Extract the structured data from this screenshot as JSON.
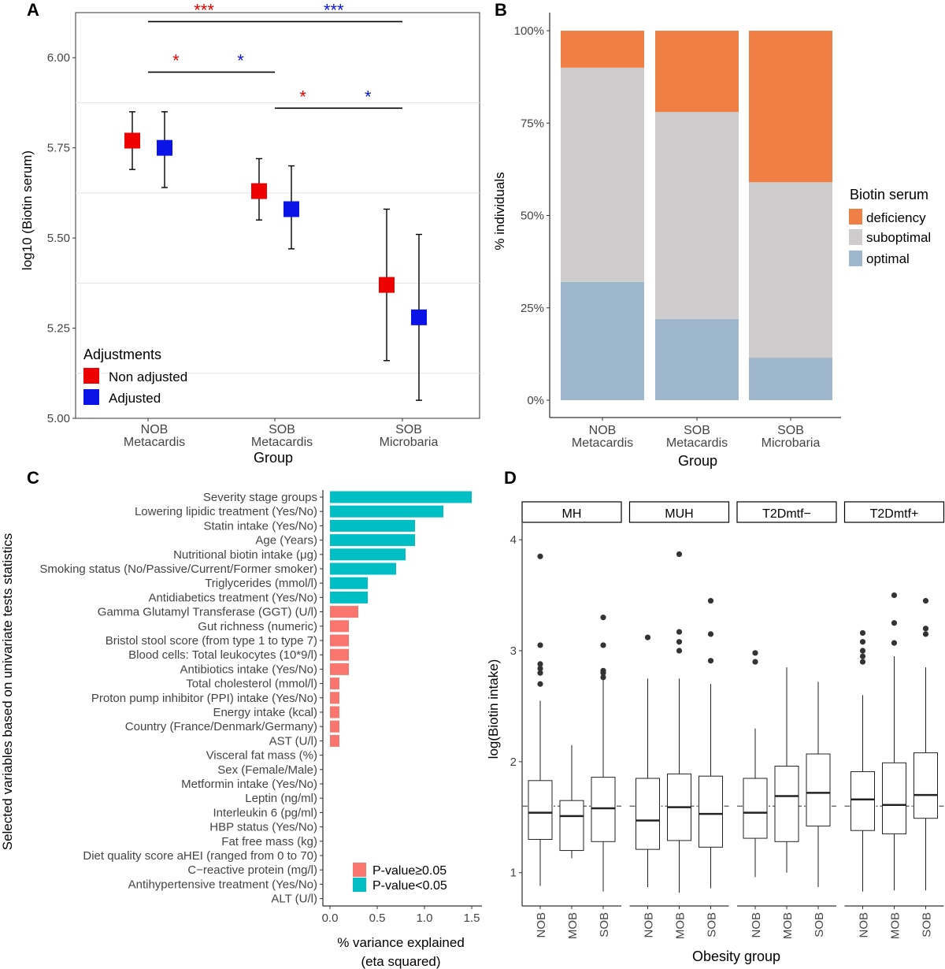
{
  "panels": {
    "A": "A",
    "B": "B",
    "C": "C",
    "D": "D"
  },
  "chart_data": [
    {
      "panel": "A",
      "type": "scatter",
      "xlabel": "Group",
      "ylabel": "log10 (Biotin serum)",
      "ylim": [
        5.0,
        6.125
      ],
      "y_ticks": [
        5.0,
        5.25,
        5.5,
        5.75,
        6.0
      ],
      "y_tick_labels": [
        "5.00",
        "5.25",
        "5.50",
        "5.75",
        "6.00"
      ],
      "categories": [
        [
          "NOB",
          "Metacardis"
        ],
        [
          "SOB",
          "Metacardis"
        ],
        [
          "SOB",
          "Microbaria"
        ]
      ],
      "grid": true,
      "legend": {
        "title": "Adjustments",
        "position": "bottom-left"
      },
      "series": [
        {
          "name": "Non adjusted",
          "color": "#ee0000",
          "values": [
            5.77,
            5.63,
            5.37
          ],
          "lower": [
            5.69,
            5.55,
            5.16
          ],
          "upper": [
            5.85,
            5.72,
            5.58
          ]
        },
        {
          "name": "Adjusted",
          "color": "#0a14e6",
          "values": [
            5.75,
            5.58,
            5.28
          ],
          "lower": [
            5.64,
            5.47,
            5.05
          ],
          "upper": [
            5.85,
            5.7,
            5.51
          ]
        }
      ],
      "annotations": [
        {
          "from": 0,
          "to": 2,
          "level": 6.1,
          "left": "***",
          "right": "***"
        },
        {
          "from": 0,
          "to": 1,
          "level": 5.96,
          "left": "*",
          "right": "*"
        },
        {
          "from": 1,
          "to": 2,
          "level": 5.86,
          "left": "*",
          "right": "*"
        }
      ]
    },
    {
      "panel": "B",
      "type": "bar",
      "stacked": true,
      "xlabel": "Group",
      "ylabel": "% individuals",
      "ylim": [
        0,
        100
      ],
      "y_ticks": [
        0,
        25,
        50,
        75,
        100
      ],
      "y_tick_labels": [
        "0%",
        "25%",
        "50%",
        "75%",
        "100%"
      ],
      "categories": [
        [
          "NOB",
          "Metacardis"
        ],
        [
          "SOB",
          "Metacardis"
        ],
        [
          "SOB",
          "Microbaria"
        ]
      ],
      "legend": {
        "title": "Biotin serum",
        "position": "right"
      },
      "series": [
        {
          "name": "optimal",
          "color": "#9fb7cd",
          "values": [
            32,
            22,
            11.5
          ]
        },
        {
          "name": "suboptimal",
          "color": "#cecccc",
          "values": [
            58,
            56,
            47.5
          ]
        },
        {
          "name": "deficiency",
          "color": "#f07f46",
          "values": [
            10,
            22,
            41
          ]
        }
      ]
    },
    {
      "panel": "C",
      "type": "bar",
      "orientation": "horizontal",
      "xlabel": "% variance explained",
      "xlabel2": "(eta squared)",
      "ylabel": "Selected variables based on univariate tests statistics",
      "xlim": [
        0,
        1.5
      ],
      "x_ticks": [
        0,
        0.5,
        1.0,
        1.5
      ],
      "x_tick_labels": [
        "0.0",
        "0.5",
        "1.0",
        "1.5"
      ],
      "legend": {
        "position": "bottom-right"
      },
      "groups": [
        {
          "name": "P-value≥0.05",
          "color": "#f8766d"
        },
        {
          "name": "P-value<0.05",
          "color": "#00bfc4"
        }
      ],
      "categories": [
        "Severity stage groups",
        "Lowering lipidic treatment (Yes/No)",
        "Statin intake (Yes/No)",
        "Age (Years)",
        "Nutritional biotin intake (μg)",
        "Smoking status (No/Passive/Current/Former smoker)",
        "Triglycerides (mmol/l)",
        "Antidiabetics treatment (Yes/No)",
        "Gamma Glutamyl Transferase (GGT) (U/l)",
        "Gut richness (numeric)",
        "Bristol stool score (from type 1 to type 7)",
        "Blood cells: Total leukocytes (10*9/l)",
        "Antibiotics intake (Yes/No)",
        "Total cholesterol (mmol/l)",
        "Proton pump inhibitor (PPI) intake (Yes/No)",
        "Energy intake (kcal)",
        "Country (France/Denmark/Germany)",
        "AST (U/l)",
        "Visceral fat mass (%)",
        "Sex (Female/Male)",
        "Metformin intake (Yes/No)",
        "Leptin (ng/ml)",
        "Interleukin 6 (pg/ml)",
        "HBP status (Yes/No)",
        "Fat free mass (kg)",
        "Diet quality score aHEI (ranged from 0 to 70)",
        "C−reactive protein (mg/l)",
        "Antihypertensive treatment (Yes/No)",
        "ALT (U/l)"
      ],
      "values": [
        1.5,
        1.2,
        0.9,
        0.9,
        0.8,
        0.7,
        0.4,
        0.4,
        0.3,
        0.2,
        0.2,
        0.2,
        0.2,
        0.1,
        0.1,
        0.1,
        0.1,
        0.1,
        0,
        0,
        0,
        0,
        0,
        0,
        0,
        0,
        0,
        0,
        0
      ],
      "significant": [
        true,
        true,
        true,
        true,
        true,
        true,
        true,
        true,
        false,
        false,
        false,
        false,
        false,
        false,
        false,
        false,
        false,
        false,
        false,
        false,
        false,
        false,
        false,
        false,
        false,
        false,
        false,
        false,
        false
      ]
    },
    {
      "panel": "D",
      "type": "box",
      "xlabel": "Obesity group",
      "ylabel": "log(Biotin intake)",
      "ylim": [
        0.7,
        4.15
      ],
      "y_ticks": [
        1,
        2,
        3,
        4
      ],
      "y_tick_labels": [
        "1",
        "2",
        "3",
        "4"
      ],
      "reference_line": 1.6,
      "facets": [
        {
          "label": "MH",
          "boxes": [
            {
              "category": "NOB",
              "whisker_low": 0.88,
              "q1": 1.3,
              "median": 1.54,
              "q3": 1.83,
              "whisker_high": 2.55,
              "outliers": [
                3.85,
                3.05,
                2.88,
                2.84,
                2.8,
                2.7
              ]
            },
            {
              "category": "MOB",
              "whisker_low": 1.13,
              "q1": 1.2,
              "median": 1.51,
              "q3": 1.65,
              "whisker_high": 2.15,
              "outliers": []
            },
            {
              "category": "SOB",
              "whisker_low": 0.83,
              "q1": 1.28,
              "median": 1.58,
              "q3": 1.86,
              "whisker_high": 2.75,
              "outliers": [
                3.3,
                3.05,
                2.82,
                2.8,
                2.76
              ]
            }
          ]
        },
        {
          "label": "MUH",
          "boxes": [
            {
              "category": "NOB",
              "whisker_low": 0.87,
              "q1": 1.21,
              "median": 1.47,
              "q3": 1.85,
              "whisker_high": 2.75,
              "outliers": [
                3.12
              ]
            },
            {
              "category": "MOB",
              "whisker_low": 0.82,
              "q1": 1.29,
              "median": 1.59,
              "q3": 1.89,
              "whisker_high": 2.75,
              "outliers": [
                3.87,
                3.17,
                3.08,
                3.0
              ]
            },
            {
              "category": "SOB",
              "whisker_low": 0.86,
              "q1": 1.23,
              "median": 1.53,
              "q3": 1.87,
              "whisker_high": 2.7,
              "outliers": [
                3.45,
                3.15,
                2.91
              ]
            }
          ]
        },
        {
          "label": "T2Dmtf−",
          "boxes": [
            {
              "category": "NOB",
              "whisker_low": 0.96,
              "q1": 1.31,
              "median": 1.54,
              "q3": 1.85,
              "whisker_high": 2.3,
              "outliers": [
                2.98,
                2.9
              ]
            },
            {
              "category": "MOB",
              "whisker_low": 1.0,
              "q1": 1.28,
              "median": 1.69,
              "q3": 1.96,
              "whisker_high": 2.85,
              "outliers": []
            },
            {
              "category": "SOB",
              "whisker_low": 0.87,
              "q1": 1.42,
              "median": 1.72,
              "q3": 2.07,
              "whisker_high": 2.72,
              "outliers": []
            }
          ]
        },
        {
          "label": "T2Dmtf+",
          "boxes": [
            {
              "category": "NOB",
              "whisker_low": 0.83,
              "q1": 1.38,
              "median": 1.66,
              "q3": 1.91,
              "whisker_high": 2.6,
              "outliers": [
                3.16,
                3.08,
                3.0,
                2.95,
                2.9
              ]
            },
            {
              "category": "MOB",
              "whisker_low": 0.84,
              "q1": 1.35,
              "median": 1.61,
              "q3": 1.99,
              "whisker_high": 2.95,
              "outliers": [
                3.5,
                3.25,
                3.07
              ]
            },
            {
              "category": "SOB",
              "whisker_low": 0.84,
              "q1": 1.49,
              "median": 1.7,
              "q3": 2.08,
              "whisker_high": 2.85,
              "outliers": [
                3.45,
                3.2,
                3.15
              ]
            }
          ]
        }
      ]
    }
  ]
}
